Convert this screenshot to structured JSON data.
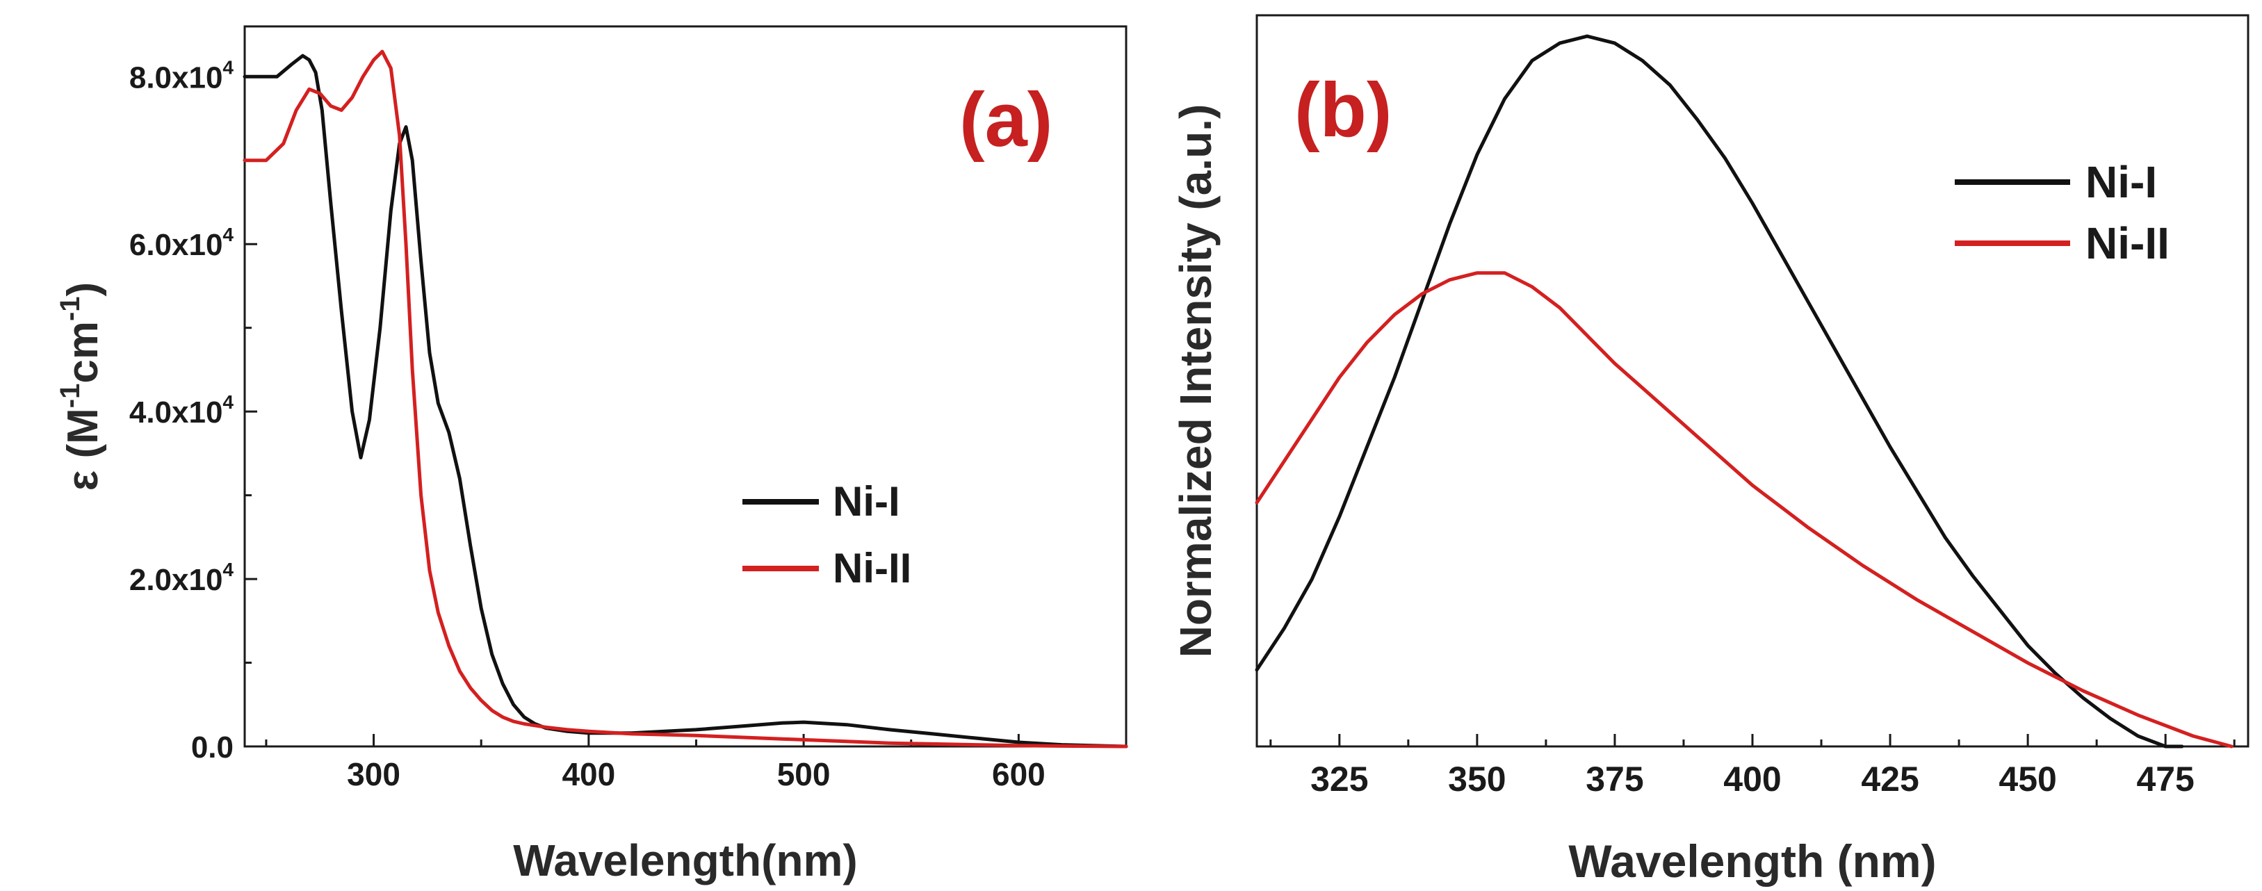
{
  "chart_data": [
    {
      "type": "line",
      "panel_label": "(a)",
      "title": "",
      "xlabel": "Wavelength(nm)",
      "ylabel_main": "ε (M",
      "ylabel_sup1": "-1",
      "ylabel_mid": "cm",
      "ylabel_sup2": "-1",
      "ylabel_end": ")",
      "xlim": [
        240,
        650
      ],
      "ylim": [
        0,
        86000
      ],
      "x_ticks": [
        300,
        400,
        500,
        600
      ],
      "x_tick_labels": [
        "300",
        "400",
        "500",
        "600"
      ],
      "y_ticks": [
        0,
        20000,
        40000,
        60000,
        80000
      ],
      "y_tick_labels": [
        {
          "base": "0.0",
          "exp": ""
        },
        {
          "base": "2.0x10",
          "exp": "4"
        },
        {
          "base": "4.0x10",
          "exp": "4"
        },
        {
          "base": "6.0x10",
          "exp": "4"
        },
        {
          "base": "8.0x10",
          "exp": "4"
        }
      ],
      "legend_position": "center-right",
      "series": [
        {
          "name": "Ni-I",
          "color": "#111111",
          "x": [
            240,
            255,
            262,
            267,
            270,
            273,
            276,
            280,
            285,
            290,
            294,
            298,
            303,
            308,
            312,
            315,
            318,
            322,
            326,
            330,
            335,
            340,
            345,
            350,
            355,
            360,
            365,
            370,
            375,
            380,
            390,
            400,
            420,
            450,
            470,
            490,
            500,
            520,
            540,
            560,
            580,
            600,
            620,
            650
          ],
          "y": [
            80000,
            80000,
            81500,
            82500,
            82000,
            80500,
            76000,
            65000,
            52000,
            40000,
            34500,
            39000,
            50000,
            64000,
            72000,
            74000,
            70000,
            58000,
            47000,
            41000,
            37500,
            32000,
            24000,
            16500,
            11000,
            7500,
            5000,
            3500,
            2700,
            2200,
            1800,
            1600,
            1600,
            2000,
            2400,
            2800,
            2900,
            2600,
            2000,
            1500,
            1000,
            500,
            200,
            0
          ]
        },
        {
          "name": "Ni-II",
          "color": "#d42020",
          "x": [
            240,
            250,
            258,
            264,
            270,
            275,
            280,
            285,
            290,
            295,
            300,
            304,
            308,
            312,
            315,
            318,
            322,
            326,
            330,
            335,
            340,
            345,
            350,
            355,
            360,
            365,
            370,
            380,
            390,
            400,
            420,
            450,
            470,
            490,
            500,
            520,
            540,
            560,
            580,
            600,
            620,
            650
          ],
          "y": [
            70000,
            70000,
            72000,
            76000,
            78500,
            78000,
            76500,
            76000,
            77500,
            80000,
            82000,
            83000,
            81000,
            73000,
            60000,
            45000,
            30000,
            21000,
            16000,
            12000,
            9000,
            7000,
            5500,
            4300,
            3500,
            3000,
            2700,
            2300,
            2000,
            1800,
            1500,
            1300,
            1100,
            900,
            800,
            600,
            400,
            300,
            200,
            100,
            50,
            0
          ]
        }
      ]
    },
    {
      "type": "line",
      "panel_label": "(b)",
      "title": "",
      "xlabel": "Wavelength (nm)",
      "ylabel": "Normalized Intensity (a.u.)",
      "xlim": [
        310,
        490
      ],
      "ylim": [
        0,
        1.05
      ],
      "x_ticks": [
        325,
        350,
        375,
        400,
        425,
        450,
        475
      ],
      "x_tick_labels": [
        "325",
        "350",
        "375",
        "400",
        "425",
        "450",
        "475"
      ],
      "y_ticks": [],
      "legend_position": "top-right",
      "series": [
        {
          "name": "Ni-I",
          "color": "#111111",
          "x": [
            310,
            315,
            320,
            325,
            330,
            335,
            340,
            345,
            350,
            355,
            360,
            365,
            370,
            375,
            380,
            385,
            390,
            395,
            400,
            405,
            410,
            415,
            420,
            425,
            430,
            435,
            440,
            445,
            450,
            455,
            460,
            465,
            470,
            475,
            478
          ],
          "y": [
            0.11,
            0.17,
            0.24,
            0.33,
            0.43,
            0.53,
            0.64,
            0.75,
            0.85,
            0.93,
            0.985,
            1.01,
            1.02,
            1.01,
            0.985,
            0.95,
            0.9,
            0.845,
            0.78,
            0.71,
            0.64,
            0.57,
            0.5,
            0.43,
            0.365,
            0.3,
            0.245,
            0.195,
            0.145,
            0.105,
            0.07,
            0.04,
            0.015,
            0.0,
            0.0
          ]
        },
        {
          "name": "Ni-II",
          "color": "#d42020",
          "x": [
            310,
            315,
            320,
            325,
            330,
            335,
            340,
            345,
            350,
            355,
            360,
            365,
            370,
            375,
            380,
            385,
            390,
            395,
            400,
            405,
            410,
            420,
            430,
            440,
            450,
            460,
            470,
            480,
            487
          ],
          "y": [
            0.35,
            0.41,
            0.47,
            0.53,
            0.58,
            0.62,
            0.65,
            0.67,
            0.68,
            0.68,
            0.66,
            0.63,
            0.59,
            0.55,
            0.515,
            0.48,
            0.445,
            0.41,
            0.375,
            0.345,
            0.315,
            0.26,
            0.21,
            0.165,
            0.12,
            0.08,
            0.045,
            0.015,
            0.0
          ]
        }
      ]
    }
  ]
}
